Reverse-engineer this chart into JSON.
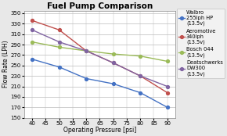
{
  "title": "Fuel Pump Comparison",
  "xlabel": "Operating Pressure [psi]",
  "ylabel": "Flow Rate (LPH)",
  "xlim": [
    37,
    93
  ],
  "ylim": [
    150,
    355
  ],
  "yticks": [
    150,
    170,
    190,
    210,
    230,
    250,
    270,
    290,
    310,
    330,
    350
  ],
  "xticks": [
    40,
    45,
    50,
    55,
    60,
    65,
    70,
    75,
    80,
    85,
    90
  ],
  "series": [
    {
      "label": "Walbro\n255lph HP\n(13.5v)",
      "color": "#4472C4",
      "x": [
        40,
        50,
        60,
        70,
        80,
        90
      ],
      "y": [
        262,
        247,
        225,
        215,
        198,
        170
      ]
    },
    {
      "label": "Aeromotive\n340lph\n(13.5v)",
      "color": "#C0504D",
      "x": [
        40,
        50,
        60,
        70,
        80,
        90
      ],
      "y": [
        336,
        318,
        278,
        255,
        230,
        198
      ]
    },
    {
      "label": "Bosch 044\n(13.5v)",
      "color": "#9BBB59",
      "x": [
        40,
        50,
        60,
        70,
        80,
        90
      ],
      "y": [
        295,
        285,
        278,
        272,
        268,
        258
      ]
    },
    {
      "label": "Deatschwerks\nDW300\n(13.5v)",
      "color": "#8064A2",
      "x": [
        40,
        50,
        60,
        70,
        80,
        90
      ],
      "y": [
        318,
        295,
        278,
        255,
        230,
        210
      ]
    }
  ],
  "background_color": "#E8E8E8",
  "plot_bg_color": "#FFFFFF",
  "title_fontsize": 7.5,
  "axis_fontsize": 5.5,
  "tick_fontsize": 5.0,
  "legend_fontsize": 4.8
}
